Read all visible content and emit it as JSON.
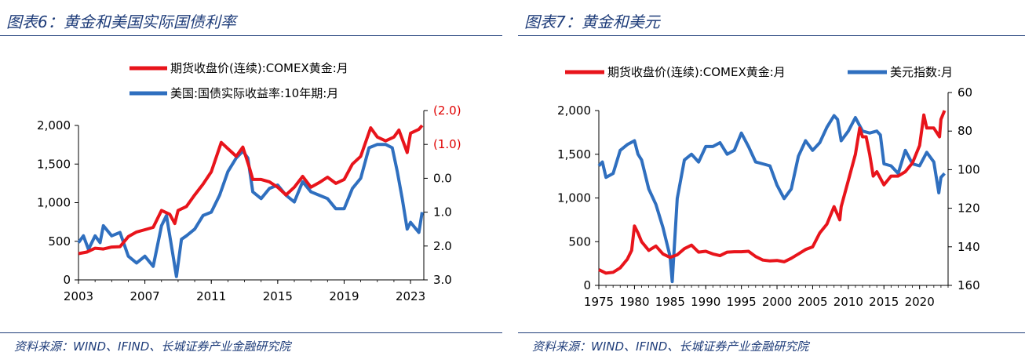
{
  "left": {
    "title": "图表6：黄金和美国实际国债利率",
    "source": "资料来源：WIND、IFIND、长城证券产业金融研究院",
    "chart_data": {
      "type": "line",
      "series": [
        {
          "name": "期货收盘价(连续):COMEX黄金:月",
          "axis": "left",
          "color": "#e8141b",
          "points": [
            [
              2003.0,
              340
            ],
            [
              2003.5,
              360
            ],
            [
              2004.0,
              410
            ],
            [
              2004.5,
              400
            ],
            [
              2005.0,
              425
            ],
            [
              2005.5,
              430
            ],
            [
              2006.0,
              560
            ],
            [
              2006.5,
              620
            ],
            [
              2007.0,
              650
            ],
            [
              2007.5,
              680
            ],
            [
              2008.0,
              900
            ],
            [
              2008.5,
              850
            ],
            [
              2008.8,
              730
            ],
            [
              2009.0,
              900
            ],
            [
              2009.5,
              950
            ],
            [
              2010.0,
              1100
            ],
            [
              2010.5,
              1240
            ],
            [
              2011.0,
              1400
            ],
            [
              2011.6,
              1780
            ],
            [
              2012.0,
              1700
            ],
            [
              2012.5,
              1600
            ],
            [
              2012.9,
              1720
            ],
            [
              2013.3,
              1450
            ],
            [
              2013.5,
              1300
            ],
            [
              2014.0,
              1300
            ],
            [
              2014.5,
              1270
            ],
            [
              2015.0,
              1200
            ],
            [
              2015.5,
              1100
            ],
            [
              2016.0,
              1200
            ],
            [
              2016.5,
              1340
            ],
            [
              2017.0,
              1200
            ],
            [
              2017.5,
              1260
            ],
            [
              2018.0,
              1330
            ],
            [
              2018.5,
              1250
            ],
            [
              2019.0,
              1300
            ],
            [
              2019.5,
              1500
            ],
            [
              2020.0,
              1600
            ],
            [
              2020.6,
              1970
            ],
            [
              2021.0,
              1850
            ],
            [
              2021.5,
              1800
            ],
            [
              2022.0,
              1850
            ],
            [
              2022.3,
              1940
            ],
            [
              2022.8,
              1650
            ],
            [
              2023.0,
              1900
            ],
            [
              2023.5,
              1950
            ],
            [
              2023.7,
              2000
            ]
          ]
        },
        {
          "name": "美国:国债实际收益率:10年期:月",
          "axis": "right",
          "color": "#2f6fbf",
          "points": [
            [
              2003.0,
              1.9
            ],
            [
              2003.3,
              1.7
            ],
            [
              2003.6,
              2.1
            ],
            [
              2004.0,
              1.7
            ],
            [
              2004.3,
              1.9
            ],
            [
              2004.5,
              1.4
            ],
            [
              2005.0,
              1.7
            ],
            [
              2005.5,
              1.6
            ],
            [
              2006.0,
              2.3
            ],
            [
              2006.5,
              2.5
            ],
            [
              2007.0,
              2.3
            ],
            [
              2007.5,
              2.6
            ],
            [
              2008.0,
              1.4
            ],
            [
              2008.3,
              1.1
            ],
            [
              2008.7,
              2.3
            ],
            [
              2008.9,
              2.9
            ],
            [
              2009.2,
              1.8
            ],
            [
              2009.5,
              1.7
            ],
            [
              2010.0,
              1.5
            ],
            [
              2010.5,
              1.1
            ],
            [
              2011.0,
              1.0
            ],
            [
              2011.5,
              0.5
            ],
            [
              2012.0,
              -0.2
            ],
            [
              2012.5,
              -0.6
            ],
            [
              2012.9,
              -0.8
            ],
            [
              2013.2,
              -0.6
            ],
            [
              2013.5,
              0.4
            ],
            [
              2014.0,
              0.6
            ],
            [
              2014.5,
              0.3
            ],
            [
              2015.0,
              0.2
            ],
            [
              2015.5,
              0.5
            ],
            [
              2016.0,
              0.7
            ],
            [
              2016.5,
              0.1
            ],
            [
              2017.0,
              0.4
            ],
            [
              2017.5,
              0.5
            ],
            [
              2018.0,
              0.6
            ],
            [
              2018.5,
              0.9
            ],
            [
              2019.0,
              0.9
            ],
            [
              2019.5,
              0.3
            ],
            [
              2020.0,
              0.0
            ],
            [
              2020.5,
              -0.9
            ],
            [
              2021.0,
              -1.0
            ],
            [
              2021.5,
              -1.0
            ],
            [
              2021.9,
              -0.9
            ],
            [
              2022.2,
              -0.2
            ],
            [
              2022.5,
              0.6
            ],
            [
              2022.8,
              1.5
            ],
            [
              2023.0,
              1.3
            ],
            [
              2023.5,
              1.6
            ],
            [
              2023.7,
              1.0
            ]
          ]
        }
      ],
      "x_ticks": [
        "2003",
        "2007",
        "2011",
        "2015",
        "2019",
        "2023"
      ],
      "y_left_ticks": [
        "0",
        "500",
        "1,000",
        "1,500",
        "2,000"
      ],
      "y_right_ticks": [
        "(2.0)",
        "(1.0)",
        "0.0",
        "1.0",
        "2.0",
        "3.0"
      ],
      "xlim": [
        2003,
        2023.8
      ],
      "y_left_lim": [
        0,
        2000
      ],
      "y_right_lim": [
        -2.0,
        3.0
      ],
      "y_right_inverted": true,
      "grid": false,
      "legend_position": "top-center"
    }
  },
  "right": {
    "title": "图表7：黄金和美元",
    "source": "资料来源：WIND、IFIND、长城证券产业金融研究院",
    "chart_data": {
      "type": "line",
      "series": [
        {
          "name": "期货收盘价(连续):COMEX黄金:月",
          "axis": "left",
          "color": "#e8141b",
          "points": [
            [
              1975.0,
              180
            ],
            [
              1976.0,
              140
            ],
            [
              1977.0,
              150
            ],
            [
              1978.0,
              200
            ],
            [
              1979.0,
              300
            ],
            [
              1979.6,
              400
            ],
            [
              1980.0,
              680
            ],
            [
              1980.5,
              600
            ],
            [
              1981.0,
              500
            ],
            [
              1982.0,
              400
            ],
            [
              1983.0,
              450
            ],
            [
              1984.0,
              360
            ],
            [
              1985.0,
              320
            ],
            [
              1986.0,
              350
            ],
            [
              1987.0,
              420
            ],
            [
              1988.0,
              460
            ],
            [
              1989.0,
              380
            ],
            [
              1990.0,
              390
            ],
            [
              1991.0,
              360
            ],
            [
              1992.0,
              340
            ],
            [
              1993.0,
              380
            ],
            [
              1994.0,
              385
            ],
            [
              1995.0,
              385
            ],
            [
              1996.0,
              390
            ],
            [
              1997.0,
              330
            ],
            [
              1998.0,
              290
            ],
            [
              1999.0,
              280
            ],
            [
              2000.0,
              285
            ],
            [
              2001.0,
              270
            ],
            [
              2002.0,
              310
            ],
            [
              2003.0,
              360
            ],
            [
              2004.0,
              410
            ],
            [
              2005.0,
              440
            ],
            [
              2006.0,
              600
            ],
            [
              2007.0,
              700
            ],
            [
              2008.0,
              900
            ],
            [
              2008.8,
              750
            ],
            [
              2009.0,
              900
            ],
            [
              2010.0,
              1200
            ],
            [
              2011.0,
              1500
            ],
            [
              2011.6,
              1800
            ],
            [
              2012.0,
              1700
            ],
            [
              2012.5,
              1700
            ],
            [
              2013.0,
              1500
            ],
            [
              2013.5,
              1250
            ],
            [
              2014.0,
              1300
            ],
            [
              2015.0,
              1150
            ],
            [
              2016.0,
              1250
            ],
            [
              2017.0,
              1250
            ],
            [
              2018.0,
              1300
            ],
            [
              2019.0,
              1400
            ],
            [
              2020.0,
              1600
            ],
            [
              2020.6,
              1950
            ],
            [
              2021.0,
              1800
            ],
            [
              2022.0,
              1800
            ],
            [
              2022.8,
              1700
            ],
            [
              2023.0,
              1900
            ],
            [
              2023.5,
              2000
            ]
          ]
        },
        {
          "name": "美元指数:月",
          "axis": "right",
          "color": "#2f6fbf",
          "points": [
            [
              1975.0,
              98
            ],
            [
              1975.5,
              96
            ],
            [
              1976.0,
              104
            ],
            [
              1977.0,
              102
            ],
            [
              1978.0,
              90
            ],
            [
              1979.0,
              87
            ],
            [
              1980.0,
              85
            ],
            [
              1980.5,
              92
            ],
            [
              1981.0,
              95
            ],
            [
              1982.0,
              110
            ],
            [
              1983.0,
              118
            ],
            [
              1984.0,
              130
            ],
            [
              1985.0,
              145
            ],
            [
              1985.3,
              158
            ],
            [
              1986.0,
              115
            ],
            [
              1987.0,
              95
            ],
            [
              1988.0,
              92
            ],
            [
              1989.0,
              96
            ],
            [
              1990.0,
              88
            ],
            [
              1991.0,
              88
            ],
            [
              1992.0,
              86
            ],
            [
              1993.0,
              92
            ],
            [
              1994.0,
              90
            ],
            [
              1995.0,
              81
            ],
            [
              1996.0,
              88
            ],
            [
              1997.0,
              96
            ],
            [
              1998.0,
              97
            ],
            [
              1999.0,
              98
            ],
            [
              2000.0,
              108
            ],
            [
              2001.0,
              115
            ],
            [
              2002.0,
              110
            ],
            [
              2003.0,
              93
            ],
            [
              2004.0,
              85
            ],
            [
              2005.0,
              90
            ],
            [
              2006.0,
              86
            ],
            [
              2007.0,
              78
            ],
            [
              2008.0,
              72
            ],
            [
              2008.5,
              74
            ],
            [
              2009.0,
              85
            ],
            [
              2010.0,
              80
            ],
            [
              2011.0,
              73
            ],
            [
              2012.0,
              80
            ],
            [
              2013.0,
              81
            ],
            [
              2014.0,
              80
            ],
            [
              2014.5,
              82
            ],
            [
              2015.0,
              97
            ],
            [
              2016.0,
              98
            ],
            [
              2017.0,
              102
            ],
            [
              2018.0,
              90
            ],
            [
              2019.0,
              97
            ],
            [
              2020.0,
              98
            ],
            [
              2021.0,
              91
            ],
            [
              2022.0,
              96
            ],
            [
              2022.7,
              112
            ],
            [
              2023.0,
              104
            ],
            [
              2023.5,
              102
            ]
          ]
        }
      ],
      "x_ticks": [
        "1975",
        "1980",
        "1985",
        "1990",
        "1995",
        "2000",
        "2005",
        "2010",
        "2015",
        "2020"
      ],
      "y_left_ticks": [
        "0",
        "500",
        "1,000",
        "1,500",
        "2,000"
      ],
      "y_right_ticks": [
        "60",
        "80",
        "100",
        "120",
        "140",
        "160"
      ],
      "xlim": [
        1975,
        2024
      ],
      "y_left_lim": [
        0,
        2000
      ],
      "y_right_lim": [
        60,
        160
      ],
      "y_right_inverted": true,
      "grid": false,
      "legend_position": "top"
    }
  }
}
